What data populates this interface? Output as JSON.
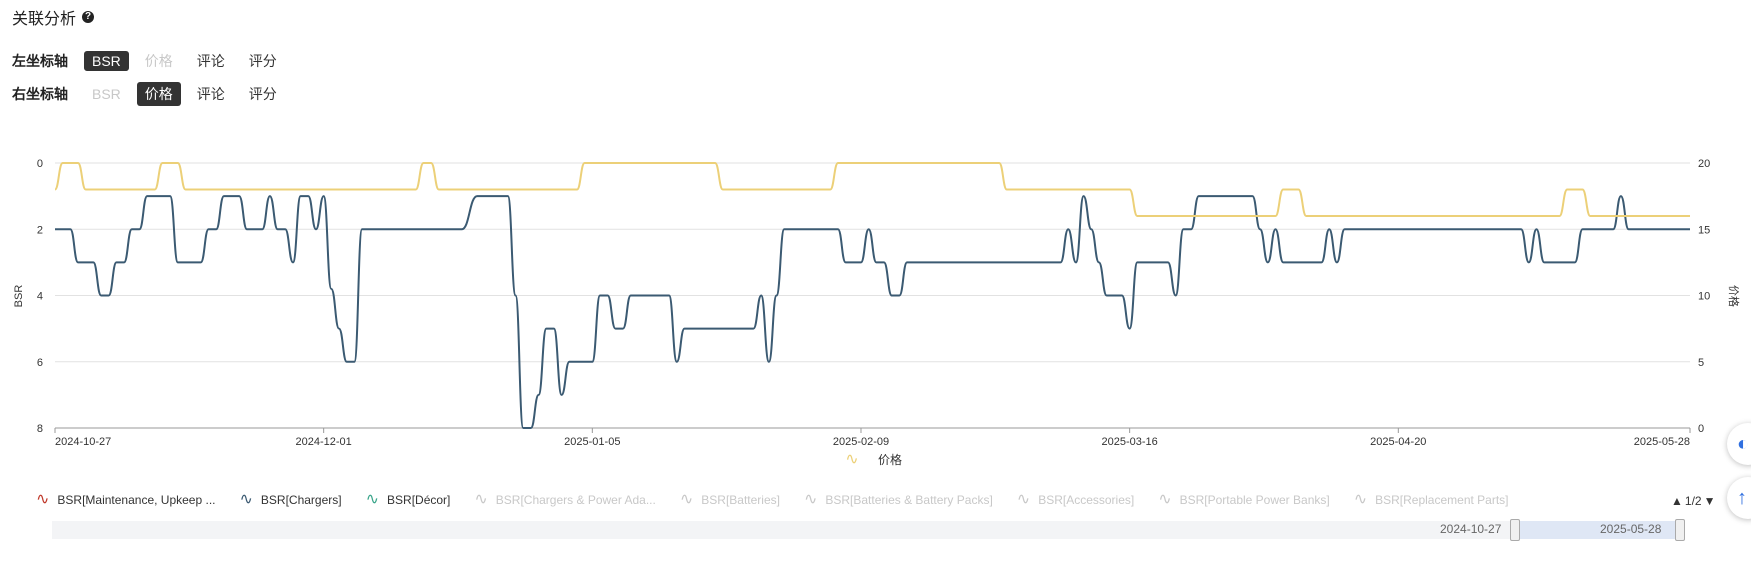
{
  "header": {
    "title": "关联分析",
    "help_icon": "question-circle-icon"
  },
  "left_axis": {
    "label": "左坐标轴",
    "options": [
      "BSR",
      "价格",
      "评论",
      "评分"
    ],
    "selected": "BSR",
    "disabled": "价格"
  },
  "right_axis": {
    "label": "右坐标轴",
    "options": [
      "BSR",
      "价格",
      "评论",
      "评分"
    ],
    "selected": "价格",
    "disabled": "BSR"
  },
  "chart_data": {
    "type": "line",
    "xlabel_ticks": [
      "2024-10-27",
      "2024-12-01",
      "2025-01-05",
      "2025-02-09",
      "2025-03-16",
      "2025-04-20",
      "2025-05-28"
    ],
    "x_range": [
      "2024-10-27",
      "2025-05-28"
    ],
    "y_left": {
      "label": "BSR",
      "ticks": [
        0,
        2,
        4,
        6,
        8
      ],
      "inverted": true,
      "range": [
        0,
        8
      ]
    },
    "y_right": {
      "label": "价格",
      "ticks": [
        0,
        5,
        10,
        15,
        20
      ],
      "range": [
        0,
        20
      ]
    },
    "grid": true,
    "legend_position": "bottom",
    "series": [
      {
        "name": "BSR[Chargers]",
        "axis": "left",
        "color": "#3b5a72",
        "points": [
          [
            "2024-10-27",
            2
          ],
          [
            "2024-10-29",
            2
          ],
          [
            "2024-10-30",
            3
          ],
          [
            "2024-11-01",
            3
          ],
          [
            "2024-11-02",
            4
          ],
          [
            "2024-11-03",
            4
          ],
          [
            "2024-11-04",
            3
          ],
          [
            "2024-11-05",
            3
          ],
          [
            "2024-11-06",
            2
          ],
          [
            "2024-11-07",
            2
          ],
          [
            "2024-11-08",
            1
          ],
          [
            "2024-11-11",
            1
          ],
          [
            "2024-11-12",
            3
          ],
          [
            "2024-11-15",
            3
          ],
          [
            "2024-11-16",
            2
          ],
          [
            "2024-11-17",
            2
          ],
          [
            "2024-11-18",
            1
          ],
          [
            "2024-11-20",
            1
          ],
          [
            "2024-11-21",
            2
          ],
          [
            "2024-11-23",
            2
          ],
          [
            "2024-11-24",
            1
          ],
          [
            "2024-11-25",
            2
          ],
          [
            "2024-11-26",
            2
          ],
          [
            "2024-11-27",
            3
          ],
          [
            "2024-11-28",
            1
          ],
          [
            "2024-11-29",
            1
          ],
          [
            "2024-11-30",
            2
          ],
          [
            "2024-12-01",
            1
          ],
          [
            "2024-12-02",
            3.8
          ],
          [
            "2024-12-03",
            5
          ],
          [
            "2024-12-04",
            6
          ],
          [
            "2024-12-05",
            6
          ],
          [
            "2024-12-06",
            2
          ],
          [
            "2024-12-19",
            2
          ],
          [
            "2024-12-21",
            1
          ],
          [
            "2024-12-22",
            1
          ],
          [
            "2024-12-25",
            1
          ],
          [
            "2024-12-26",
            4
          ],
          [
            "2024-12-27",
            8
          ],
          [
            "2024-12-28",
            8
          ],
          [
            "2024-12-29",
            7
          ],
          [
            "2024-12-30",
            5
          ],
          [
            "2024-12-31",
            5
          ],
          [
            "2025-01-01",
            7
          ],
          [
            "2025-01-02",
            6
          ],
          [
            "2025-01-05",
            6
          ],
          [
            "2025-01-06",
            4
          ],
          [
            "2025-01-07",
            4
          ],
          [
            "2025-01-08",
            5
          ],
          [
            "2025-01-09",
            5
          ],
          [
            "2025-01-10",
            4
          ],
          [
            "2025-01-15",
            4
          ],
          [
            "2025-01-16",
            6
          ],
          [
            "2025-01-17",
            5
          ],
          [
            "2025-01-26",
            5
          ],
          [
            "2025-01-27",
            4
          ],
          [
            "2025-01-28",
            6
          ],
          [
            "2025-01-29",
            4
          ],
          [
            "2025-01-30",
            2
          ],
          [
            "2025-02-06",
            2
          ],
          [
            "2025-02-07",
            3
          ],
          [
            "2025-02-09",
            3
          ],
          [
            "2025-02-10",
            2
          ],
          [
            "2025-02-11",
            3
          ],
          [
            "2025-02-12",
            3
          ],
          [
            "2025-02-13",
            4
          ],
          [
            "2025-02-14",
            4
          ],
          [
            "2025-02-15",
            3
          ],
          [
            "2025-03-07",
            3
          ],
          [
            "2025-03-08",
            2
          ],
          [
            "2025-03-09",
            3
          ],
          [
            "2025-03-10",
            1
          ],
          [
            "2025-03-11",
            2
          ],
          [
            "2025-03-12",
            3
          ],
          [
            "2025-03-13",
            4
          ],
          [
            "2025-03-15",
            4
          ],
          [
            "2025-03-16",
            5
          ],
          [
            "2025-03-17",
            3
          ],
          [
            "2025-03-21",
            3
          ],
          [
            "2025-03-22",
            4
          ],
          [
            "2025-03-23",
            2
          ],
          [
            "2025-03-24",
            2
          ],
          [
            "2025-03-25",
            1
          ],
          [
            "2025-04-01",
            1
          ],
          [
            "2025-04-02",
            2
          ],
          [
            "2025-04-03",
            3
          ],
          [
            "2025-04-04",
            2
          ],
          [
            "2025-04-05",
            3
          ],
          [
            "2025-04-10",
            3
          ],
          [
            "2025-04-11",
            2
          ],
          [
            "2025-04-12",
            3
          ],
          [
            "2025-04-13",
            2
          ],
          [
            "2025-05-06",
            2
          ],
          [
            "2025-05-07",
            3
          ],
          [
            "2025-05-08",
            2
          ],
          [
            "2025-05-09",
            3
          ],
          [
            "2025-05-13",
            3
          ],
          [
            "2025-05-14",
            2
          ],
          [
            "2025-05-18",
            2
          ],
          [
            "2025-05-19",
            1
          ],
          [
            "2025-05-20",
            2
          ],
          [
            "2025-05-28",
            2
          ]
        ]
      },
      {
        "name": "价格",
        "axis": "right",
        "color": "#ecd078",
        "points": [
          [
            "2024-10-27",
            18
          ],
          [
            "2024-10-28",
            20
          ],
          [
            "2024-10-30",
            20
          ],
          [
            "2024-10-31",
            18
          ],
          [
            "2024-11-09",
            18
          ],
          [
            "2024-11-10",
            20
          ],
          [
            "2024-11-12",
            20
          ],
          [
            "2024-11-13",
            18
          ],
          [
            "2024-12-13",
            18
          ],
          [
            "2024-12-14",
            20
          ],
          [
            "2024-12-15",
            20
          ],
          [
            "2024-12-16",
            18
          ],
          [
            "2025-01-03",
            18
          ],
          [
            "2025-01-04",
            20
          ],
          [
            "2025-01-21",
            20
          ],
          [
            "2025-01-22",
            18
          ],
          [
            "2025-02-05",
            18
          ],
          [
            "2025-02-06",
            20
          ],
          [
            "2025-02-27",
            20
          ],
          [
            "2025-02-28",
            18
          ],
          [
            "2025-03-16",
            18
          ],
          [
            "2025-03-17",
            16
          ],
          [
            "2025-04-04",
            16
          ],
          [
            "2025-04-05",
            18
          ],
          [
            "2025-04-07",
            18
          ],
          [
            "2025-04-08",
            16
          ],
          [
            "2025-05-11",
            16
          ],
          [
            "2025-05-12",
            18
          ],
          [
            "2025-05-14",
            18
          ],
          [
            "2025-05-15",
            16
          ],
          [
            "2025-05-28",
            16
          ]
        ]
      }
    ],
    "inline_legend": {
      "label": "价格",
      "color": "#ecd078"
    }
  },
  "legend": {
    "items": [
      {
        "label": "BSR[Maintenance, Upkeep ...",
        "color": "#c0392b",
        "active": true
      },
      {
        "label": "BSR[Chargers]",
        "color": "#3b5a72",
        "active": true
      },
      {
        "label": "BSR[Décor]",
        "color": "#3aa58a",
        "active": true
      },
      {
        "label": "BSR[Chargers & Power Ada...",
        "color": "#cccccc",
        "active": false
      },
      {
        "label": "BSR[Batteries]",
        "color": "#cccccc",
        "active": false
      },
      {
        "label": "BSR[Batteries & Battery Packs]",
        "color": "#cccccc",
        "active": false
      },
      {
        "label": "BSR[Accessories]",
        "color": "#cccccc",
        "active": false
      },
      {
        "label": "BSR[Portable Power Banks]",
        "color": "#cccccc",
        "active": false
      },
      {
        "label": "BSR[Replacement Parts]",
        "color": "#cccccc",
        "active": false
      }
    ],
    "page": "1/2"
  },
  "zoom": {
    "start_label": "2024-10-27",
    "end_label": "2025-05-28"
  }
}
